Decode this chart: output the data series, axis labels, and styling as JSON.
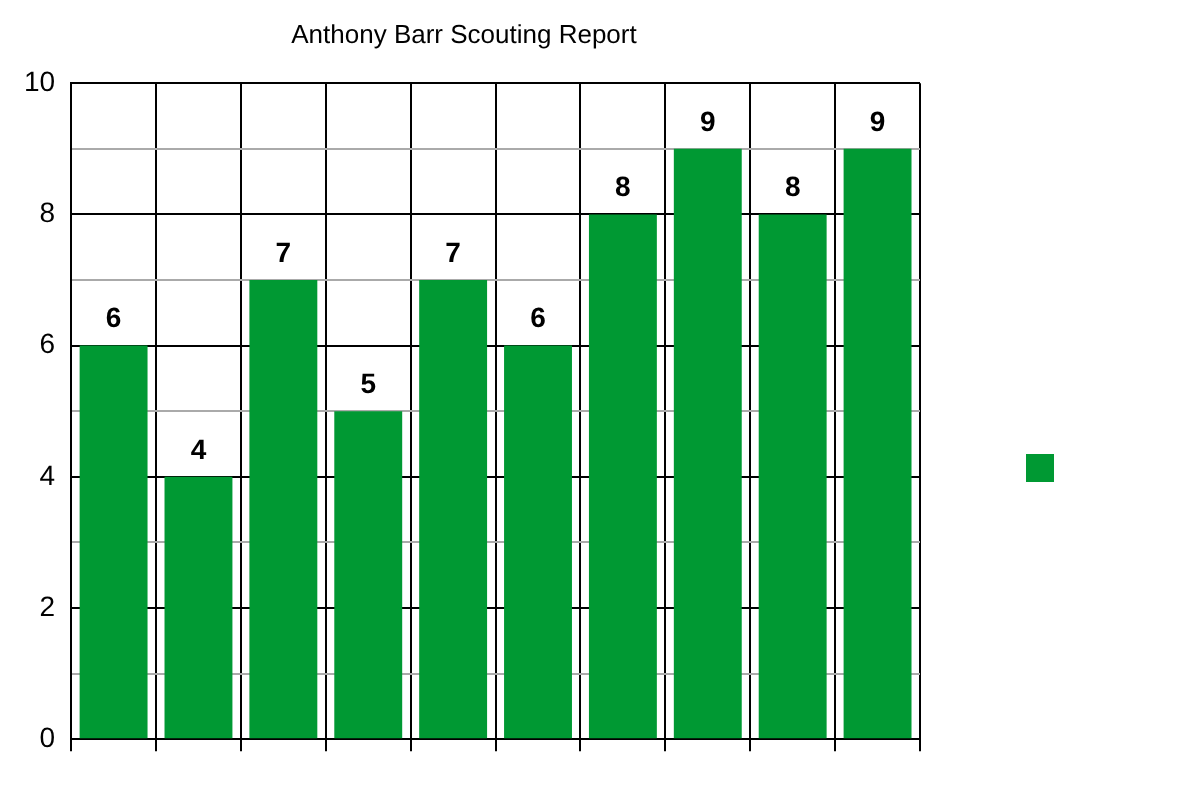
{
  "chart_data": {
    "type": "bar",
    "title": "Anthony Barr Scouting Report",
    "categories": [
      null,
      null,
      null,
      null,
      null,
      null,
      null,
      null,
      null,
      null
    ],
    "series": [
      {
        "color": "#009933",
        "values": [
          6,
          4,
          7,
          5,
          7,
          6,
          8,
          9,
          8,
          9
        ]
      }
    ],
    "ylim": [
      0,
      10
    ],
    "yticks": [
      0,
      {
        "value": 1,
        "label": null
      },
      2,
      {
        "value": 3,
        "label": null
      },
      4,
      {
        "value": 5,
        "label": null
      },
      6,
      {
        "value": 7,
        "label": null
      },
      8,
      {
        "value": 9,
        "label": null
      },
      10
    ],
    "grid": true,
    "data_labels": true
  }
}
